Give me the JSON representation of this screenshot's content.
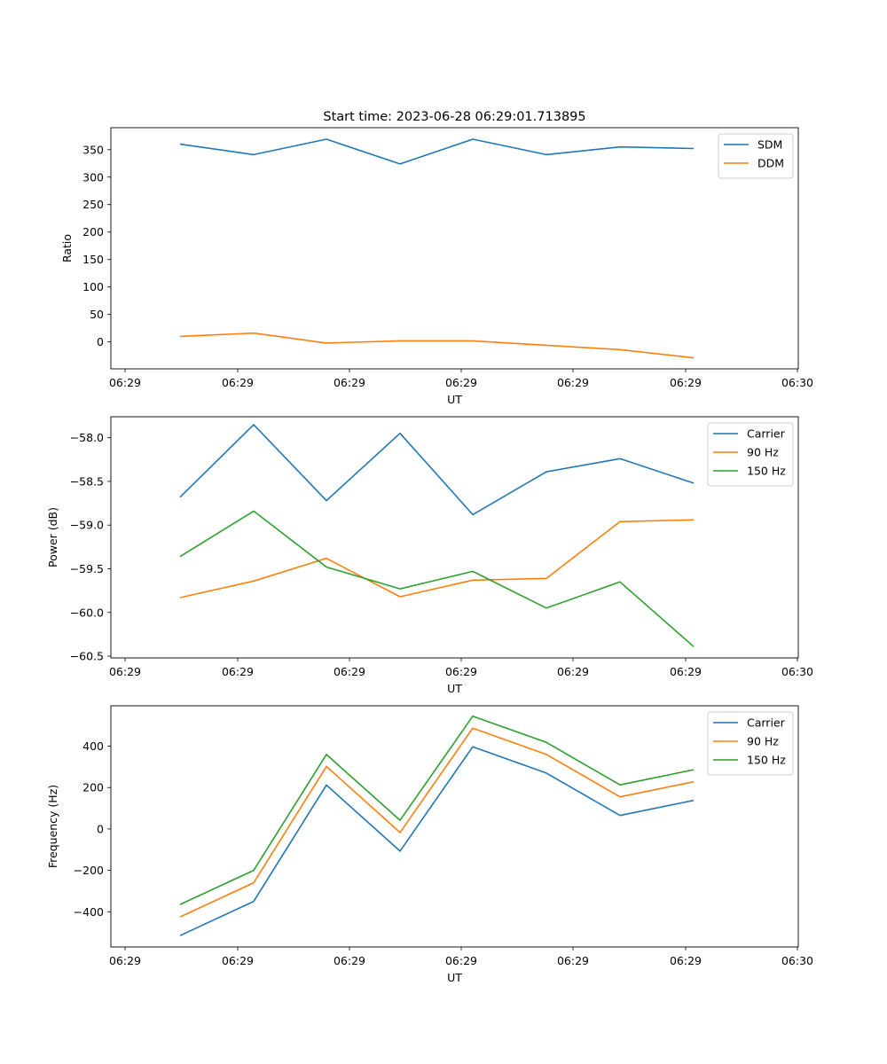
{
  "title": "Start time: 2023-06-28 06:29:01.713895",
  "colors": {
    "blue": "#1f77b4",
    "orange": "#ff7f0e",
    "green": "#2ca02c"
  },
  "chart_data": [
    {
      "type": "line",
      "xlabel": "UT",
      "ylabel": "Ratio",
      "x_tick_labels": [
        "06:29",
        "06:29",
        "06:29",
        "06:29",
        "06:29",
        "06:29",
        "06:29",
        "06:30"
      ],
      "ylim": [
        -49,
        390
      ],
      "yticks": [
        0,
        50,
        100,
        150,
        200,
        250,
        300,
        350
      ],
      "legend": "top-right",
      "series": [
        {
          "name": "SDM",
          "color": "#1f77b4",
          "values": [
            360,
            341,
            369,
            324,
            369,
            341,
            355,
            352
          ]
        },
        {
          "name": "DDM",
          "color": "#ff7f0e",
          "values": [
            10,
            16,
            -2,
            2,
            2,
            -6,
            -14,
            -29
          ]
        }
      ]
    },
    {
      "type": "line",
      "xlabel": "UT",
      "ylabel": "Power (dB)",
      "x_tick_labels": [
        "06:29",
        "06:29",
        "06:29",
        "06:29",
        "06:29",
        "06:29",
        "06:29",
        "06:30"
      ],
      "ylim": [
        -60.52,
        -57.76
      ],
      "yticks": [
        -58.0,
        -58.5,
        -59.0,
        -59.5,
        -60.0,
        -60.5
      ],
      "ytick_labels": [
        "−58.0",
        "−58.5",
        "−59.0",
        "−59.5",
        "−60.0",
        "−60.5"
      ],
      "legend": "top-right",
      "series": [
        {
          "name": "Carrier",
          "color": "#1f77b4",
          "values": [
            -58.68,
            -57.85,
            -58.72,
            -57.95,
            -58.88,
            -58.39,
            -58.24,
            -58.52
          ]
        },
        {
          "name": "90 Hz",
          "color": "#ff7f0e",
          "values": [
            -59.83,
            -59.64,
            -59.38,
            -59.82,
            -59.63,
            -59.61,
            -58.96,
            -58.94
          ]
        },
        {
          "name": "150 Hz",
          "color": "#2ca02c",
          "values": [
            -59.36,
            -58.84,
            -59.48,
            -59.73,
            -59.53,
            -59.95,
            -59.65,
            -60.39
          ]
        }
      ]
    },
    {
      "type": "line",
      "xlabel": "UT",
      "ylabel": "Frequency (Hz)",
      "x_tick_labels": [
        "06:29",
        "06:29",
        "06:29",
        "06:29",
        "06:29",
        "06:29",
        "06:29",
        "06:30"
      ],
      "ylim": [
        -570,
        595
      ],
      "yticks": [
        400,
        200,
        0,
        -200,
        -400
      ],
      "ytick_labels": [
        "400",
        "200",
        "0",
        "−200",
        "−400"
      ],
      "legend": "top-right",
      "series": [
        {
          "name": "Carrier",
          "color": "#1f77b4",
          "values": [
            -515,
            -350,
            212,
            -107,
            397,
            270,
            65,
            138
          ]
        },
        {
          "name": "90 Hz",
          "color": "#ff7f0e",
          "values": [
            -425,
            -260,
            302,
            -17,
            487,
            360,
            155,
            228
          ]
        },
        {
          "name": "150 Hz",
          "color": "#2ca02c",
          "values": [
            -365,
            -200,
            360,
            42,
            545,
            418,
            213,
            286
          ]
        }
      ]
    }
  ]
}
